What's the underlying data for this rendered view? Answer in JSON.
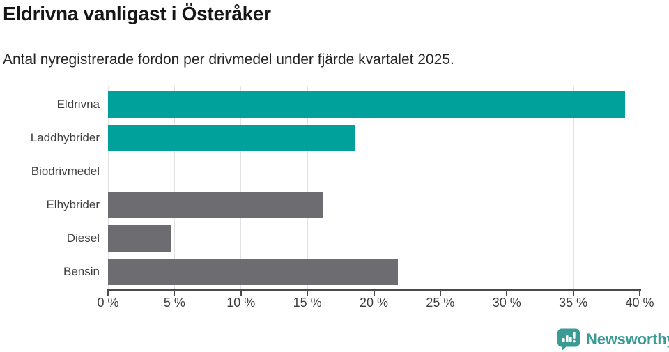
{
  "chart_data": {
    "type": "bar",
    "orientation": "horizontal",
    "title": "Eldrivna vanligast i Österåker",
    "subtitle": "Antal nyregistrerade fordon per drivmedel under fjärde kvartalet 2025.",
    "categories": [
      "Eldrivna",
      "Laddhybrider",
      "Biodrivmedel",
      "Elhybrider",
      "Diesel",
      "Bensin"
    ],
    "values": [
      38.9,
      18.6,
      0,
      16.2,
      4.7,
      21.8
    ],
    "unit": "%",
    "bar_colors": [
      "#00a19a",
      "#00a19a",
      "#6d6c71",
      "#6d6c71",
      "#6d6c71",
      "#6d6c71"
    ],
    "highlight_color": "#00a19a",
    "default_color": "#6d6c71",
    "xlim": [
      0,
      40
    ],
    "x_ticks": [
      0,
      5,
      10,
      15,
      20,
      25,
      30,
      35,
      40
    ],
    "x_tick_labels": [
      "0 %",
      "5 %",
      "10 %",
      "15 %",
      "20 %",
      "25 %",
      "30 %",
      "35 %",
      "40 %"
    ],
    "grid": "vertical",
    "gridline_color": "#e2e2e2",
    "axis_color": "#4a4a4a",
    "legend": "none"
  },
  "footer": {
    "brand": "Newsworthy",
    "brand_color": "#3a9a94",
    "logo_icon": "bar-chart-speech-bubble"
  }
}
